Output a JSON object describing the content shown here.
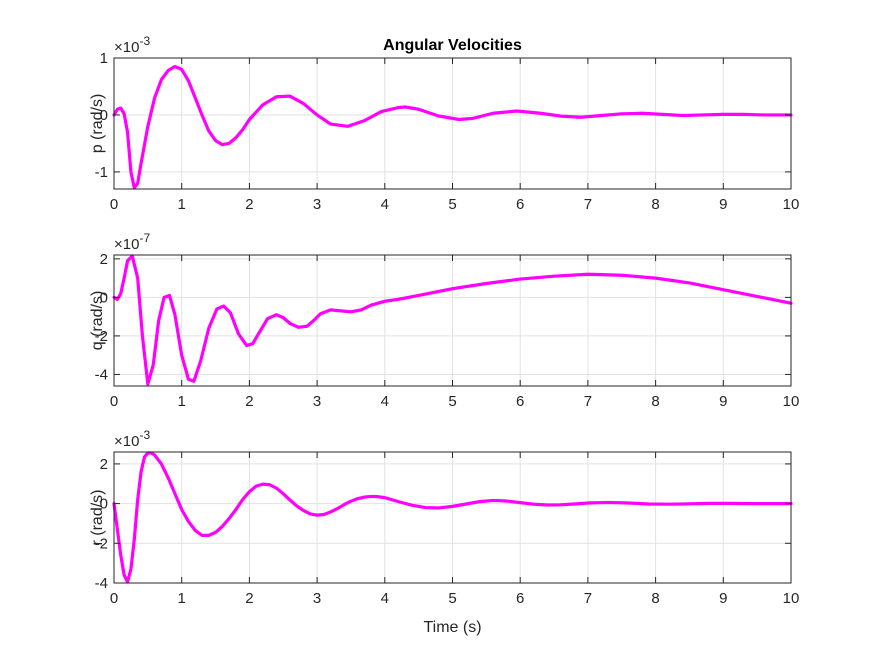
{
  "chart_data": [
    {
      "type": "line",
      "title": "Angular Velocities",
      "ylabel": "p (rad/s)",
      "xlabel": "",
      "exponent_base": "×10",
      "exponent_power": "-3",
      "xlim": [
        0,
        10
      ],
      "ylim": [
        -1.3,
        1.0
      ],
      "xticks": [
        0,
        1,
        2,
        3,
        4,
        5,
        6,
        7,
        8,
        9,
        10
      ],
      "xtick_labels": [
        "0",
        "1",
        "2",
        "3",
        "4",
        "5",
        "6",
        "7",
        "8",
        "9",
        "10"
      ],
      "yticks": [
        -1,
        0,
        1
      ],
      "ytick_labels": [
        "-1",
        "0",
        "1"
      ],
      "grid": true,
      "line_color": "#ff00ff",
      "series": [
        {
          "x": [
            0,
            0.05,
            0.1,
            0.15,
            0.2,
            0.25,
            0.3,
            0.35,
            0.4,
            0.5,
            0.6,
            0.7,
            0.8,
            0.9,
            1.0,
            1.1,
            1.2,
            1.3,
            1.4,
            1.5,
            1.6,
            1.7,
            1.8,
            1.9,
            2.0,
            2.2,
            2.4,
            2.6,
            2.8,
            3.0,
            3.2,
            3.45,
            3.7,
            3.95,
            4.2,
            4.3,
            4.5,
            4.8,
            5.1,
            5.3,
            5.6,
            5.95,
            6.3,
            6.6,
            6.9,
            7.2,
            7.5,
            7.8,
            8.1,
            8.4,
            8.7,
            9.0,
            9.3,
            9.6,
            10.0
          ],
          "y": [
            0,
            0.1,
            0.12,
            0.02,
            -0.3,
            -1.0,
            -1.28,
            -1.2,
            -0.85,
            -0.2,
            0.3,
            0.62,
            0.78,
            0.85,
            0.8,
            0.6,
            0.3,
            0.0,
            -0.28,
            -0.45,
            -0.52,
            -0.5,
            -0.4,
            -0.26,
            -0.08,
            0.18,
            0.32,
            0.33,
            0.2,
            0.0,
            -0.16,
            -0.2,
            -0.1,
            0.06,
            0.13,
            0.14,
            0.1,
            -0.02,
            -0.08,
            -0.06,
            0.03,
            0.07,
            0.03,
            -0.02,
            -0.04,
            -0.01,
            0.02,
            0.03,
            0.01,
            -0.01,
            0.0,
            0.01,
            0.01,
            0.0,
            0.0
          ]
        }
      ]
    },
    {
      "type": "line",
      "title": "",
      "ylabel": "q (rad/s)",
      "xlabel": "",
      "exponent_base": "×10",
      "exponent_power": "-7",
      "xlim": [
        0,
        10
      ],
      "ylim": [
        -4.6,
        2.2
      ],
      "xticks": [
        0,
        1,
        2,
        3,
        4,
        5,
        6,
        7,
        8,
        9,
        10
      ],
      "xtick_labels": [
        "0",
        "1",
        "2",
        "3",
        "4",
        "5",
        "6",
        "7",
        "8",
        "9",
        "10"
      ],
      "yticks": [
        -4,
        -2,
        0,
        2
      ],
      "ytick_labels": [
        "-4",
        "-2",
        "0",
        "2"
      ],
      "grid": true,
      "line_color": "#ff00ff",
      "series": [
        {
          "x": [
            0,
            0.05,
            0.1,
            0.15,
            0.2,
            0.27,
            0.35,
            0.42,
            0.5,
            0.58,
            0.66,
            0.74,
            0.82,
            0.9,
            1.0,
            1.1,
            1.18,
            1.28,
            1.4,
            1.52,
            1.62,
            1.72,
            1.84,
            1.96,
            2.05,
            2.15,
            2.27,
            2.4,
            2.5,
            2.6,
            2.72,
            2.85,
            2.95,
            3.05,
            3.2,
            3.35,
            3.5,
            3.65,
            3.8,
            4.0,
            4.2,
            4.5,
            5.0,
            5.5,
            6.0,
            6.5,
            7.0,
            7.5,
            8.0,
            8.5,
            9.0,
            9.5,
            10.0
          ],
          "y": [
            0,
            -0.1,
            0.2,
            1.0,
            1.9,
            2.15,
            1.0,
            -2.0,
            -4.5,
            -3.5,
            -1.2,
            0.0,
            0.1,
            -0.9,
            -3.0,
            -4.25,
            -4.35,
            -3.3,
            -1.6,
            -0.6,
            -0.45,
            -0.8,
            -1.9,
            -2.5,
            -2.4,
            -1.8,
            -1.1,
            -0.9,
            -1.05,
            -1.35,
            -1.55,
            -1.5,
            -1.2,
            -0.85,
            -0.65,
            -0.7,
            -0.75,
            -0.65,
            -0.4,
            -0.2,
            -0.1,
            0.1,
            0.45,
            0.72,
            0.95,
            1.1,
            1.2,
            1.15,
            1.0,
            0.75,
            0.4,
            0.05,
            -0.3
          ]
        }
      ]
    },
    {
      "type": "line",
      "title": "",
      "ylabel": "r (rad/s)",
      "xlabel": "Time (s)",
      "exponent_base": "×10",
      "exponent_power": "-3",
      "xlim": [
        0,
        10
      ],
      "ylim": [
        -4,
        2.6
      ],
      "xticks": [
        0,
        1,
        2,
        3,
        4,
        5,
        6,
        7,
        8,
        9,
        10
      ],
      "xtick_labels": [
        "0",
        "1",
        "2",
        "3",
        "4",
        "5",
        "6",
        "7",
        "8",
        "9",
        "10"
      ],
      "yticks": [
        -4,
        -2,
        0,
        2
      ],
      "ytick_labels": [
        "-4",
        "-2",
        "0",
        "2"
      ],
      "grid": true,
      "line_color": "#ff00ff",
      "series": [
        {
          "x": [
            0,
            0.05,
            0.1,
            0.15,
            0.2,
            0.25,
            0.3,
            0.35,
            0.4,
            0.45,
            0.5,
            0.55,
            0.6,
            0.7,
            0.8,
            0.9,
            1.0,
            1.1,
            1.2,
            1.3,
            1.4,
            1.5,
            1.6,
            1.7,
            1.8,
            1.9,
            2.0,
            2.1,
            2.2,
            2.3,
            2.4,
            2.5,
            2.6,
            2.7,
            2.8,
            2.9,
            3.0,
            3.1,
            3.2,
            3.3,
            3.4,
            3.5,
            3.6,
            3.7,
            3.8,
            3.9,
            4.0,
            4.2,
            4.4,
            4.6,
            4.8,
            5.0,
            5.2,
            5.4,
            5.6,
            5.8,
            6.0,
            6.2,
            6.4,
            6.6,
            6.8,
            7.0,
            7.3,
            7.6,
            7.9,
            8.2,
            8.5,
            8.8,
            9.1,
            9.4,
            9.7,
            10.0
          ],
          "y": [
            0,
            -1.3,
            -2.6,
            -3.6,
            -3.95,
            -3.3,
            -1.8,
            0.2,
            1.6,
            2.35,
            2.55,
            2.55,
            2.45,
            2.0,
            1.3,
            0.5,
            -0.3,
            -0.9,
            -1.35,
            -1.6,
            -1.6,
            -1.45,
            -1.15,
            -0.75,
            -0.3,
            0.2,
            0.6,
            0.88,
            0.98,
            0.95,
            0.78,
            0.5,
            0.18,
            -0.12,
            -0.35,
            -0.52,
            -0.58,
            -0.55,
            -0.42,
            -0.25,
            -0.05,
            0.12,
            0.25,
            0.33,
            0.36,
            0.35,
            0.3,
            0.1,
            -0.08,
            -0.2,
            -0.22,
            -0.14,
            -0.02,
            0.1,
            0.16,
            0.13,
            0.05,
            -0.03,
            -0.07,
            -0.06,
            -0.02,
            0.03,
            0.06,
            0.03,
            -0.02,
            -0.03,
            -0.01,
            0.01,
            0.01,
            0.0,
            0.0,
            0.0
          ]
        }
      ]
    }
  ]
}
